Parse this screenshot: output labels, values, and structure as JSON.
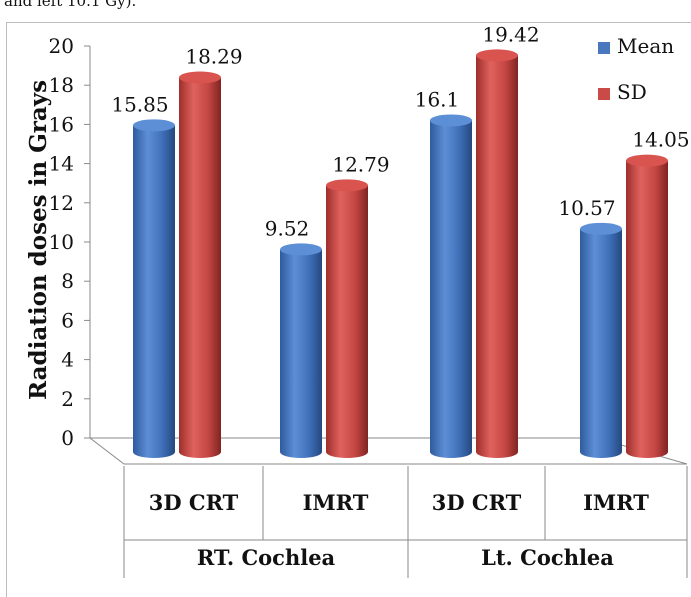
{
  "caption_fragment": "and left 10.1 Gy).",
  "chart_data": {
    "type": "bar",
    "ylabel": "Radiation doses in Grays",
    "xlabel": "",
    "ylim": [
      0,
      20
    ],
    "yticks": [
      "0",
      "2",
      "4",
      "6",
      "8",
      "10",
      "12",
      "14",
      "16",
      "18",
      "20"
    ],
    "grid": false,
    "legend_position": "top-right",
    "categories": [
      "3D CRT",
      "IMRT",
      "3D CRT",
      "IMRT"
    ],
    "groups": [
      {
        "label": "RT. Cochlea",
        "categories": [
          "3D CRT",
          "IMRT"
        ]
      },
      {
        "label": "Lt. Cochlea",
        "categories": [
          "3D CRT",
          "IMRT"
        ]
      }
    ],
    "series": [
      {
        "name": "Mean",
        "values": [
          15.85,
          9.52,
          16.1,
          10.57
        ],
        "labels": [
          "15.85",
          "9.52",
          "16.1",
          "10.57"
        ],
        "color": "#4a78bf"
      },
      {
        "name": "SD",
        "values": [
          18.29,
          12.79,
          19.42,
          14.05
        ],
        "labels": [
          "18.29",
          "12.79",
          "19.42",
          "14.05"
        ],
        "color": "#c94a47"
      }
    ]
  }
}
